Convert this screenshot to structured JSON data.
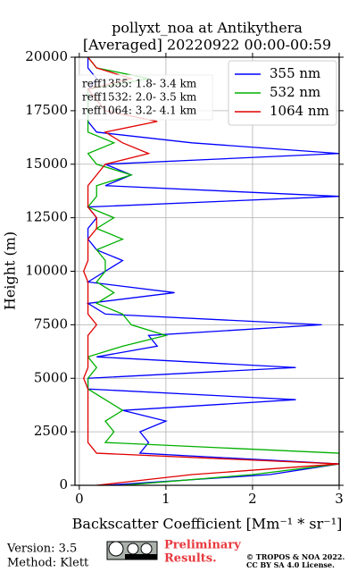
{
  "chart_data": {
    "type": "line",
    "orientation": "vertical",
    "title": [
      "pollyxt_noa at Antikythera",
      "[Averaged] 20220922 00:00-00:59"
    ],
    "xlabel": "Backscatter Coefficient [Mm⁻¹ * sr⁻¹]",
    "ylabel": "Height (m)",
    "y": [
      0,
      500,
      1000,
      1500,
      2000,
      2500,
      3000,
      3500,
      4000,
      4500,
      5000,
      5500,
      6000,
      6500,
      7000,
      7500,
      8000,
      8500,
      9000,
      9500,
      10000,
      10500,
      11000,
      11500,
      12000,
      12500,
      13000,
      13500,
      14000,
      14500,
      15000,
      15500,
      16000,
      16500,
      17000,
      17500,
      18000,
      18500,
      19000,
      19500,
      20000
    ],
    "series": [
      {
        "name": "355 nm",
        "color": "#0000ff",
        "values": [
          0.3,
          2.2,
          3.0,
          0.7,
          0.8,
          0.7,
          1.0,
          0.5,
          2.5,
          0.1,
          0.1,
          2.5,
          0.2,
          0.9,
          0.8,
          2.8,
          0.3,
          0.1,
          1.1,
          0.1,
          0.3,
          0.5,
          0.2,
          0.1,
          0.1,
          0.2,
          0.1,
          3.0,
          0.3,
          0.6,
          0.3,
          3.0,
          1.3,
          0.2,
          0.1,
          0.1,
          0.1,
          0.1,
          0.2,
          0.1,
          0.1
        ]
      },
      {
        "name": "532 nm",
        "color": "#00b000",
        "values": [
          0.5,
          2.0,
          3.0,
          3.0,
          0.3,
          0.4,
          0.3,
          0.5,
          0.3,
          0.1,
          0.1,
          0.2,
          0.1,
          0.5,
          1.0,
          0.6,
          0.5,
          0.2,
          0.4,
          0.2,
          0.3,
          0.3,
          0.2,
          0.5,
          0.2,
          0.4,
          0.1,
          0.2,
          0.2,
          0.6,
          0.2,
          0.1,
          0.4,
          0.1,
          0.1,
          0.1,
          0.1,
          0.1,
          0.8,
          0.2,
          0.1
        ]
      },
      {
        "name": "1064 nm",
        "color": "#e00000",
        "values": [
          0.2,
          1.3,
          3.0,
          0.2,
          0.1,
          0.1,
          0.1,
          0.1,
          0.1,
          0.1,
          0.05,
          0.1,
          0.1,
          0.1,
          0.1,
          0.2,
          0.1,
          0.1,
          0.1,
          0.1,
          0.05,
          0.1,
          0.1,
          0.1,
          0.2,
          0.2,
          0.1,
          0.1,
          0.1,
          0.2,
          0.3,
          0.8,
          0.5,
          0.3,
          0.9,
          0.3,
          0.2,
          0.1,
          0.6,
          0.2,
          0.1
        ]
      }
    ],
    "xlim": [
      -0.05,
      3
    ],
    "xticks": [
      0,
      1,
      2,
      3
    ],
    "ylim": [
      0,
      20000
    ],
    "yticks": [
      0,
      2500,
      5000,
      7500,
      10000,
      12500,
      15000,
      17500,
      20000
    ],
    "grid": true,
    "legend": "upper right",
    "annotations": [
      "reff1355:  1.8- 3.4 km",
      "reff1532:  2.0- 3.5 km",
      "reff1064:  3.2- 4.1 km"
    ],
    "footer": {
      "version": "Version: 3.5",
      "method": "Method: Klett",
      "status": [
        "Preliminary",
        "Results."
      ],
      "copyright": [
        "© TROPOS & NOA 2022.",
        "CC BY SA 4.0 License."
      ]
    }
  }
}
